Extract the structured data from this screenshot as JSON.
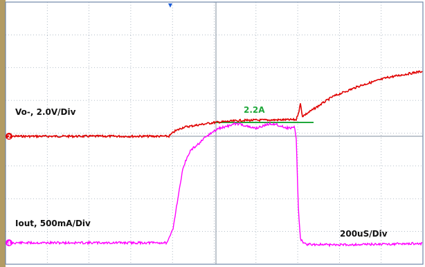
{
  "scope": {
    "labels": {
      "ch1": "Vo-, 2.0V/Div",
      "ch2": "Iout, 500mA/Div",
      "timebase": "200uS/Div",
      "cursor_value": "2.2A"
    },
    "markers": {
      "ch1": "2",
      "ch2": "4"
    },
    "colors": {
      "background": "#ffffff",
      "grid": "#9aa7b5",
      "frame": "#6d86a8",
      "left_bar": "#b29b63",
      "ch1_trace": "#e00000",
      "ch2_trace": "#ff00ff",
      "cursor_line": "#1fa83a",
      "cursor_label": "#1fa83a",
      "trigger_marker": "#1a5cd8"
    },
    "grid": {
      "h_divisions": 10,
      "v_divisions": 8
    }
  }
}
